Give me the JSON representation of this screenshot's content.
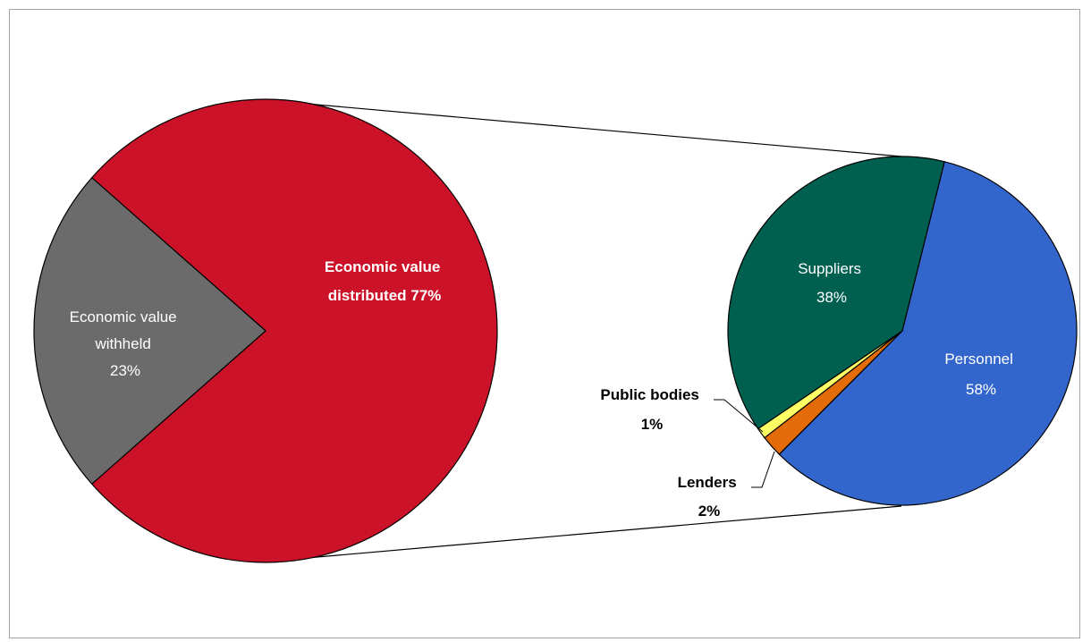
{
  "chart_data": [
    {
      "type": "pie",
      "slices": [
        {
          "label_lines": [
            "Economic value",
            "distributed 77%"
          ],
          "value": 77,
          "color": "#cc1228",
          "label_color": "#ffffff",
          "bold": true
        },
        {
          "label_lines": [
            "Economic value",
            "withheld",
            "23%"
          ],
          "value": 23,
          "color": "#6b6b6b",
          "label_color": "#ffffff",
          "bold": false
        }
      ]
    },
    {
      "type": "pie",
      "slices": [
        {
          "label_lines": [
            "Personnel",
            "58%"
          ],
          "value": 58,
          "color": "#3366cc",
          "label_color": "#ffffff",
          "bold": false
        },
        {
          "label_lines": [
            "Lenders",
            "2%"
          ],
          "value": 2,
          "color": "#e36c09",
          "label_color": "#000000",
          "bold": true
        },
        {
          "label_lines": [
            "Public bodies",
            "1%"
          ],
          "value": 1,
          "color": "#ffff66",
          "label_color": "#000000",
          "bold": true
        },
        {
          "label_lines": [
            "Suppliers",
            "38%"
          ],
          "value": 38,
          "color": "#00604f",
          "label_color": "#ffffff",
          "bold": false
        }
      ]
    }
  ]
}
